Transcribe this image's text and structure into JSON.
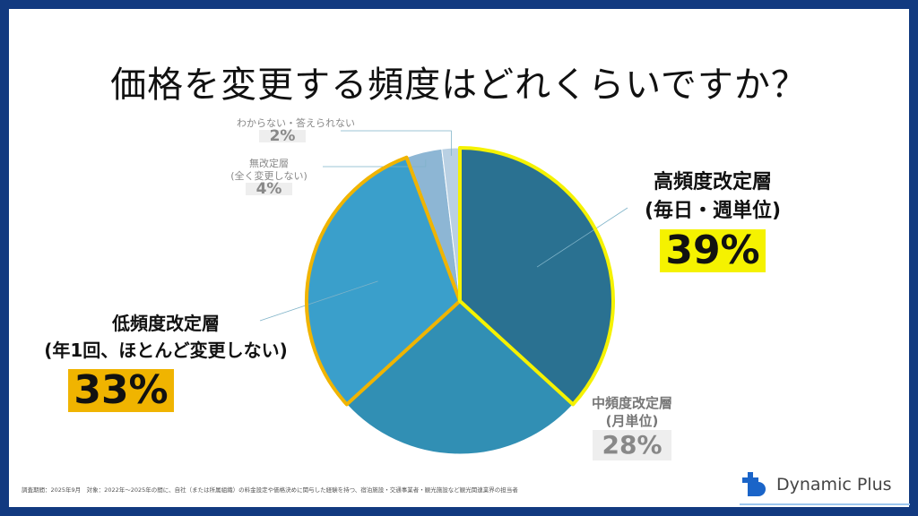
{
  "title": "価格を変更する頻度はどれくらいですか？",
  "chart_data": {
    "type": "pie",
    "title": "価格を変更する頻度はどれくらいですか？",
    "slices": [
      {
        "label": "高頻度改定層",
        "sub": "(毎日・週単位)",
        "value": 39,
        "display": "39%",
        "color": "#2a7191"
      },
      {
        "label": "中頻度改定層",
        "sub": "(月単位)",
        "value": 28,
        "display": "28%",
        "color": "#318fb4"
      },
      {
        "label": "低頻度改定層",
        "sub": "(年1回、ほとんど変更しない)",
        "value": 33,
        "display": "33%",
        "color": "#3a9fcb"
      },
      {
        "label": "無改定層",
        "sub": "(全く変更しない)",
        "value": 4,
        "display": "4%",
        "color": "#8db6d4"
      },
      {
        "label": "わからない・答えられない",
        "sub": "",
        "value": 2,
        "display": "2%",
        "color": "#b9d0e3"
      }
    ],
    "highlight_colors": {
      "high": "#f5f200",
      "low": "#f0b400"
    }
  },
  "footnote": "調査期間：2025年9月　対象：2022年～2025年の間に、自社（または所属組織）の料金設定や価格決めに関与した経験を持つ、宿泊施設・交通事業者・観光施設など観光関連業界の担当者",
  "brand": {
    "name": "Dynamic Plus",
    "color": "#1a64c8"
  }
}
